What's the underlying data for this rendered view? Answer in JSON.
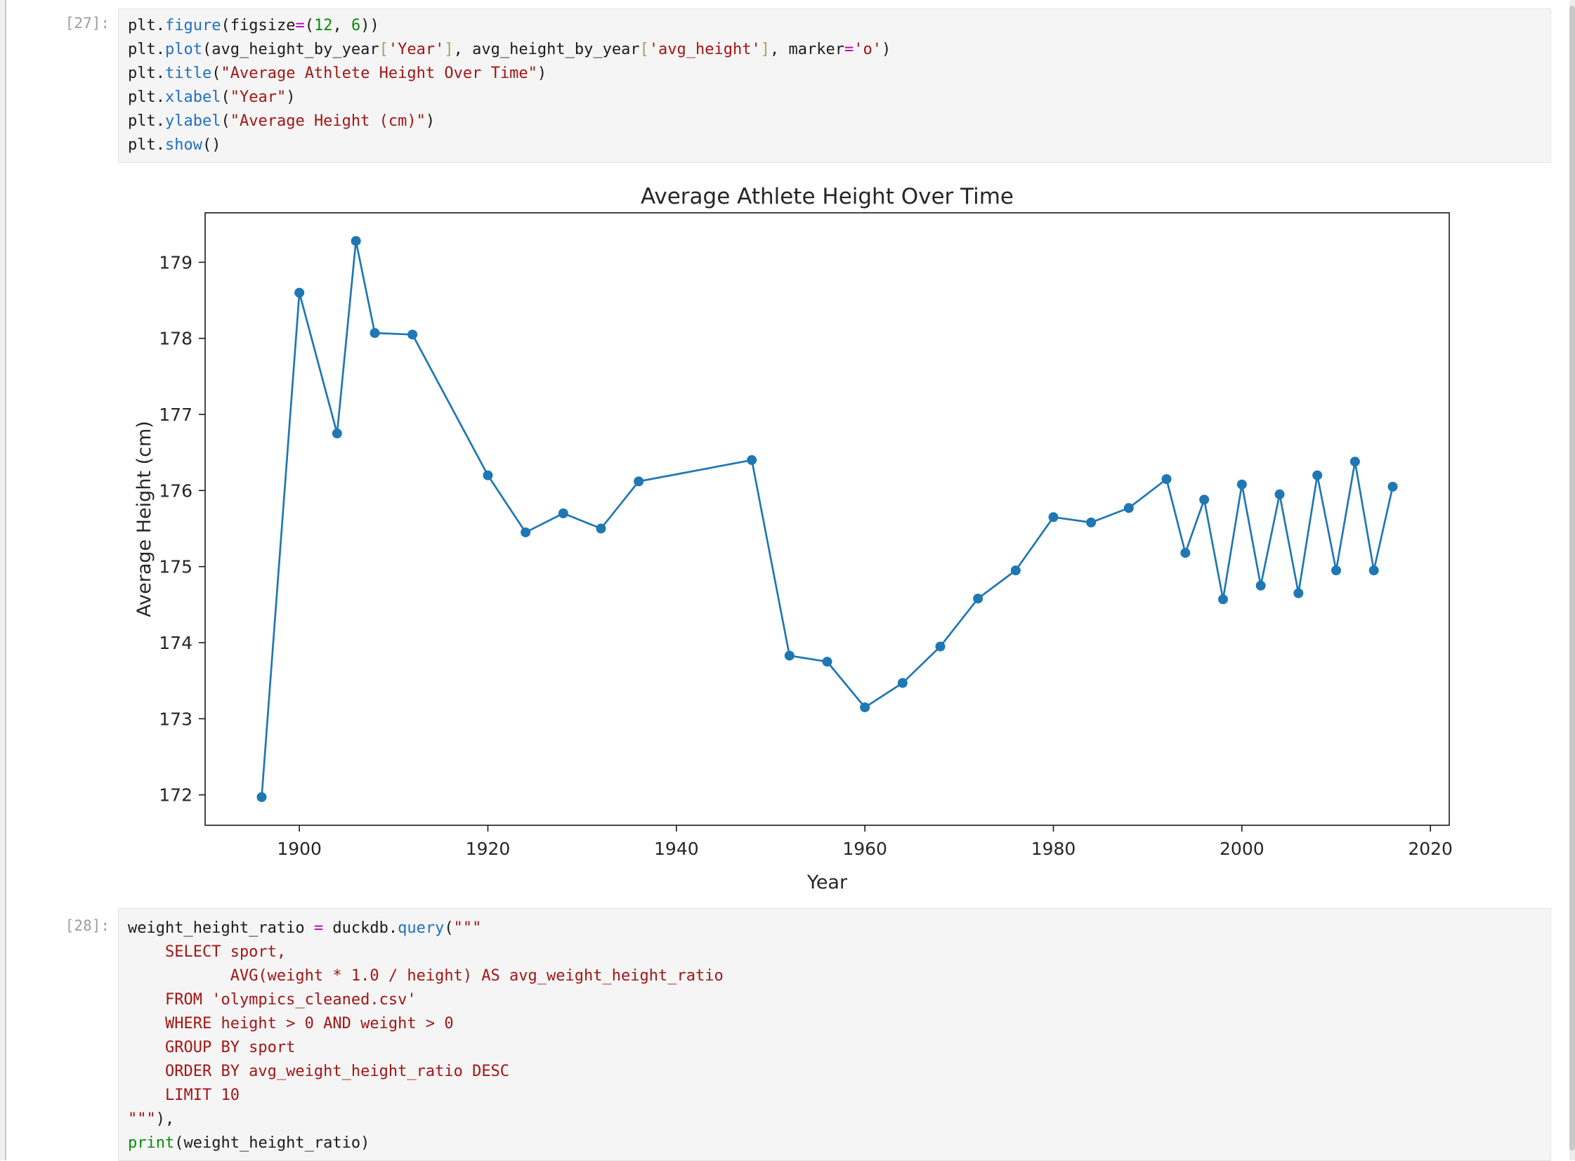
{
  "cells": [
    {
      "prompt": "[27]:",
      "lines": [
        [
          [
            "v",
            "plt"
          ],
          [
            "p",
            "."
          ],
          [
            "fn",
            "figure"
          ],
          [
            "p",
            "("
          ],
          [
            "v",
            "figsize"
          ],
          [
            "op",
            "="
          ],
          [
            "p",
            "("
          ],
          [
            "num",
            "12"
          ],
          [
            "p",
            ", "
          ],
          [
            "num",
            "6"
          ],
          [
            "p",
            "))"
          ]
        ],
        [
          [
            "v",
            "plt"
          ],
          [
            "p",
            "."
          ],
          [
            "fn",
            "plot"
          ],
          [
            "p",
            "("
          ],
          [
            "v",
            "avg_height_by_year"
          ],
          [
            "br",
            "["
          ],
          [
            "str",
            "'Year'"
          ],
          [
            "br",
            "]"
          ],
          [
            "p",
            ", "
          ],
          [
            "v",
            "avg_height_by_year"
          ],
          [
            "br",
            "["
          ],
          [
            "str",
            "'avg_height'"
          ],
          [
            "br",
            "]"
          ],
          [
            "p",
            ", "
          ],
          [
            "v",
            "marker"
          ],
          [
            "op",
            "="
          ],
          [
            "str",
            "'o'"
          ],
          [
            "p",
            ")"
          ]
        ],
        [
          [
            "v",
            "plt"
          ],
          [
            "p",
            "."
          ],
          [
            "fn",
            "title"
          ],
          [
            "p",
            "("
          ],
          [
            "str",
            "\"Average Athlete Height Over Time\""
          ],
          [
            "p",
            ")"
          ]
        ],
        [
          [
            "v",
            "plt"
          ],
          [
            "p",
            "."
          ],
          [
            "fn",
            "xlabel"
          ],
          [
            "p",
            "("
          ],
          [
            "str",
            "\"Year\""
          ],
          [
            "p",
            ")"
          ]
        ],
        [
          [
            "v",
            "plt"
          ],
          [
            "p",
            "."
          ],
          [
            "fn",
            "ylabel"
          ],
          [
            "p",
            "("
          ],
          [
            "str",
            "\"Average Height (cm)\""
          ],
          [
            "p",
            ")"
          ]
        ],
        [
          [
            "v",
            "plt"
          ],
          [
            "p",
            "."
          ],
          [
            "fn",
            "show"
          ],
          [
            "p",
            "()"
          ]
        ]
      ]
    },
    {
      "prompt": "[28]:",
      "lines": [
        [
          [
            "v",
            "weight_height_ratio"
          ],
          [
            "p",
            " "
          ],
          [
            "op",
            "="
          ],
          [
            "p",
            " "
          ],
          [
            "v",
            "duckdb"
          ],
          [
            "p",
            "."
          ],
          [
            "fn",
            "query"
          ],
          [
            "p",
            "("
          ],
          [
            "str",
            "\"\"\""
          ]
        ],
        [
          [
            "str",
            "    SELECT sport,"
          ]
        ],
        [
          [
            "str",
            "           AVG(weight * 1.0 / height) AS avg_weight_height_ratio"
          ]
        ],
        [
          [
            "str",
            "    FROM 'olympics_cleaned.csv'"
          ]
        ],
        [
          [
            "str",
            "    WHERE height > 0 AND weight > 0"
          ]
        ],
        [
          [
            "str",
            "    GROUP BY sport"
          ]
        ],
        [
          [
            "str",
            "    ORDER BY avg_weight_height_ratio DESC"
          ]
        ],
        [
          [
            "str",
            "    LIMIT 10"
          ]
        ],
        [
          [
            "str",
            "\"\"\""
          ],
          [
            "p",
            "),"
          ],
          [
            "p",
            ""
          ]
        ],
        [
          [
            "bi",
            "print"
          ],
          [
            "p",
            "("
          ],
          [
            "v",
            "weight_height_ratio"
          ],
          [
            "p",
            ")"
          ]
        ]
      ]
    }
  ],
  "chart_data": {
    "type": "line",
    "title": "Average Athlete Height Over Time",
    "xlabel": "Year",
    "ylabel": "Average Height (cm)",
    "legend": "none",
    "grid": false,
    "line_color": "#1f77b4",
    "marker": "o",
    "xlim": [
      1890,
      2022
    ],
    "ylim": [
      171.6,
      179.65
    ],
    "xticks": [
      1900,
      1920,
      1940,
      1960,
      1980,
      2000,
      2020
    ],
    "yticks": [
      172,
      173,
      174,
      175,
      176,
      177,
      178,
      179
    ],
    "x": [
      1896,
      1900,
      1904,
      1906,
      1908,
      1912,
      1920,
      1924,
      1928,
      1932,
      1936,
      1948,
      1952,
      1956,
      1960,
      1964,
      1968,
      1972,
      1976,
      1980,
      1984,
      1988,
      1992,
      1994,
      1996,
      1998,
      2000,
      2002,
      2004,
      2006,
      2008,
      2010,
      2012,
      2014,
      2016
    ],
    "y": [
      171.97,
      178.6,
      176.75,
      179.28,
      178.07,
      178.05,
      176.2,
      175.45,
      175.7,
      175.5,
      176.12,
      176.4,
      173.83,
      173.75,
      173.15,
      173.47,
      173.95,
      174.58,
      174.95,
      175.65,
      175.58,
      175.77,
      176.15,
      175.18,
      175.88,
      174.57,
      176.08,
      174.75,
      175.95,
      174.65,
      176.2,
      174.95,
      176.38,
      174.95,
      176.05
    ]
  },
  "scrollbar": {
    "present": true
  }
}
